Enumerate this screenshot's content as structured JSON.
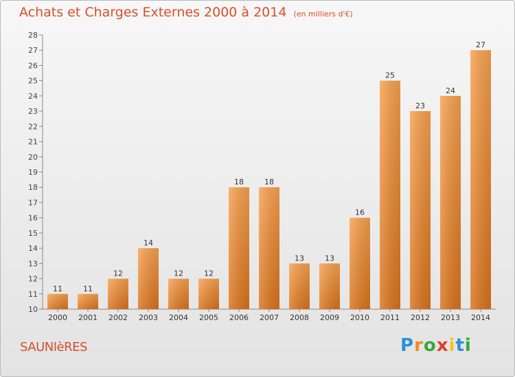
{
  "header": {
    "title": "Achats et Charges Externes 2000 à 2014",
    "subtitle": "(en milliers d'€)"
  },
  "footer": {
    "town": "SAUNIèRES",
    "logo": {
      "letters": [
        "P",
        "r",
        "o",
        "x",
        "i",
        "t",
        "i"
      ]
    }
  },
  "chart_data": {
    "type": "bar",
    "title": "Achats et Charges Externes 2000 à 2014",
    "subtitle": "(en milliers d'€)",
    "xlabel": "",
    "ylabel": "",
    "categories": [
      "2000",
      "2001",
      "2002",
      "2003",
      "2004",
      "2005",
      "2006",
      "2007",
      "2008",
      "2009",
      "2010",
      "2011",
      "2012",
      "2013",
      "2014"
    ],
    "values": [
      11,
      11,
      12,
      14,
      12,
      12,
      18,
      18,
      13,
      13,
      16,
      25,
      23,
      24,
      27
    ],
    "ylim": [
      10,
      28
    ],
    "yticks": [
      10,
      11,
      12,
      13,
      14,
      15,
      16,
      17,
      18,
      19,
      20,
      21,
      22,
      23,
      24,
      25,
      26,
      27,
      28
    ],
    "grid": false,
    "colors": {
      "bar_light": "#f7a14f",
      "bar_dark": "#d9731c",
      "title": "#d3512a"
    }
  }
}
